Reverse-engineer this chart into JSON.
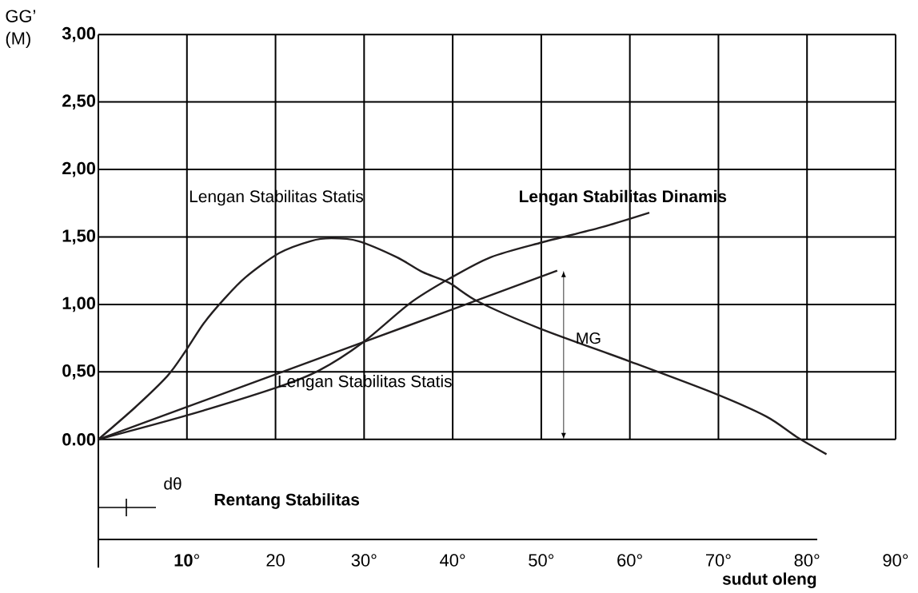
{
  "chart_data": {
    "type": "line",
    "xlabel": "sudut oleng",
    "ylabel": "GG’ (M)",
    "xlim": [
      0,
      90
    ],
    "ylim": [
      -0.95,
      3.0
    ],
    "xticks": [
      {
        "value": 10,
        "label": "**10**°"
      },
      20,
      {
        "value": 30,
        "label": "30°"
      },
      {
        "value": 40,
        "label": "40°"
      },
      {
        "value": 50,
        "label": "50°"
      },
      {
        "value": 60,
        "label": "60°"
      },
      {
        "value": 70,
        "label": "70°"
      },
      {
        "value": 80,
        "label": "80°"
      },
      {
        "value": 90,
        "label": "90°"
      }
    ],
    "yticks": [
      {
        "value": 0,
        "label": "0.00"
      },
      {
        "value": 0.5,
        "label": "0,50"
      },
      {
        "value": 1,
        "label": "1,00"
      },
      {
        "value": 1.5,
        "label": "1,50"
      },
      {
        "value": 2,
        "label": "2,00"
      },
      {
        "value": 2.5,
        "label": "2,50"
      },
      {
        "value": 3,
        "label": "3,00"
      }
    ],
    "grid": true,
    "marker": "none",
    "line_style": "solid",
    "series": [
      {
        "name": "Lengan Stabilitas Statis",
        "color": "#231f20",
        "x": [
          0,
          4.2,
          7.8,
          9.8,
          11.9,
          14.2,
          16.6,
          20.4,
          24.0,
          26.3,
          29.3,
          33.7,
          36.6,
          39.6,
          42.9,
          49.9,
          59.9,
          69.2,
          75.4,
          78.8,
          82.2
        ],
        "values": [
          0,
          0.24,
          0.47,
          0.65,
          0.86,
          1.04,
          1.2,
          1.38,
          1.47,
          1.49,
          1.47,
          1.35,
          1.24,
          1.16,
          1.02,
          0.82,
          0.58,
          0.35,
          0.17,
          0.02,
          -0.11
        ]
      },
      {
        "name": "Lengan Stabilitas Dinamis",
        "color": "#231f20",
        "x": [
          0,
          10.1,
          20.4,
          24.9,
          29.9,
          35.2,
          39.6,
          44.3,
          50.1,
          56.7,
          62.2
        ],
        "values": [
          0,
          0.18,
          0.39,
          0.51,
          0.72,
          1.01,
          1.19,
          1.35,
          1.46,
          1.57,
          1.68
        ]
      },
      {
        "name": "Lengan Stabilitas Statis",
        "color": "#231f20",
        "x": [
          0,
          29.9,
          51.8
        ],
        "values": [
          0,
          0.72,
          1.25
        ]
      }
    ],
    "annotations": [
      "MG",
      "dθ",
      "Rentang Stabilitas"
    ]
  }
}
